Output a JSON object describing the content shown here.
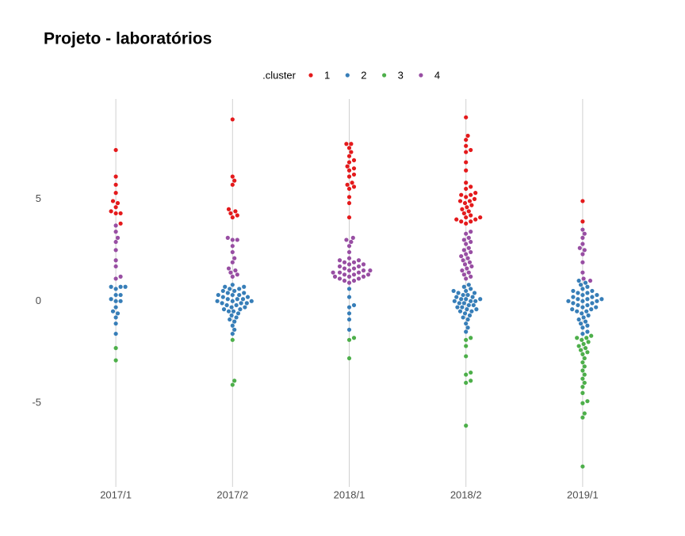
{
  "chart_data": {
    "type": "beeswarm",
    "title": "Projeto - laboratórios",
    "legend_title": ".cluster",
    "categories": [
      "2017/1",
      "2017/2",
      "2018/1",
      "2018/2",
      "2019/1"
    ],
    "ylim": [
      -9.1,
      9.9
    ],
    "yticks": [
      -5,
      0,
      5
    ],
    "grid": true,
    "series": [
      {
        "name": "1",
        "color": "#e41a1c",
        "x": [
          "2017/1",
          "2017/1",
          "2017/1",
          "2017/1",
          "2017/1",
          "2017/1",
          "2017/1",
          "2017/1",
          "2017/1",
          "2017/1",
          "2017/1",
          "2017/2",
          "2017/2",
          "2017/2",
          "2017/2",
          "2017/2",
          "2017/2",
          "2017/2",
          "2017/2",
          "2017/2",
          "2018/1",
          "2018/1",
          "2018/1",
          "2018/1",
          "2018/1",
          "2018/1",
          "2018/1",
          "2018/1",
          "2018/1",
          "2018/1",
          "2018/1",
          "2018/1",
          "2018/1",
          "2018/1",
          "2018/1",
          "2018/1",
          "2018/1",
          "2018/1",
          "2018/1",
          "2018/2",
          "2018/2",
          "2018/2",
          "2018/2",
          "2018/2",
          "2018/2",
          "2018/2",
          "2018/2",
          "2018/2",
          "2018/2",
          "2018/2",
          "2018/2",
          "2018/2",
          "2018/2",
          "2018/2",
          "2018/2",
          "2018/2",
          "2018/2",
          "2018/2",
          "2018/2",
          "2018/2",
          "2018/2",
          "2018/2",
          "2018/2",
          "2018/2",
          "2018/2",
          "2018/2",
          "2018/2",
          "2018/2",
          "2018/2",
          "2018/2",
          "2018/2",
          "2019/1",
          "2019/1"
        ],
        "values": [
          7.4,
          6.1,
          5.7,
          5.3,
          4.9,
          4.8,
          4.6,
          4.4,
          4.3,
          4.3,
          3.8,
          8.9,
          6.1,
          5.9,
          5.7,
          4.5,
          4.4,
          4.3,
          4.2,
          4.1,
          7.7,
          7.7,
          7.5,
          7.3,
          7.1,
          6.9,
          6.8,
          6.6,
          6.5,
          6.4,
          6.2,
          6.1,
          5.8,
          5.7,
          5.6,
          5.5,
          5.1,
          4.8,
          4.1,
          9.0,
          8.1,
          7.9,
          7.6,
          7.4,
          7.3,
          6.8,
          6.4,
          5.8,
          5.6,
          5.5,
          5.3,
          5.2,
          5.2,
          5.1,
          5.0,
          4.9,
          4.9,
          4.8,
          4.7,
          4.6,
          4.5,
          4.4,
          4.3,
          4.2,
          4.1,
          4.1,
          4.0,
          4.0,
          3.9,
          3.9,
          3.8,
          4.9,
          3.9
        ]
      },
      {
        "name": "2",
        "color": "#377eb8",
        "x": [
          "2017/1",
          "2017/1",
          "2017/1",
          "2017/1",
          "2017/1",
          "2017/1",
          "2017/1",
          "2017/1",
          "2017/1",
          "2017/1",
          "2017/1",
          "2017/1",
          "2017/1",
          "2017/1",
          "2017/1",
          "2017/2",
          "2017/2",
          "2017/2",
          "2017/2",
          "2017/2",
          "2017/2",
          "2017/2",
          "2017/2",
          "2017/2",
          "2017/2",
          "2017/2",
          "2017/2",
          "2017/2",
          "2017/2",
          "2017/2",
          "2017/2",
          "2017/2",
          "2017/2",
          "2017/2",
          "2017/2",
          "2017/2",
          "2017/2",
          "2017/2",
          "2017/2",
          "2017/2",
          "2017/2",
          "2017/2",
          "2017/2",
          "2017/2",
          "2017/2",
          "2017/2",
          "2017/2",
          "2017/2",
          "2017/2",
          "2017/2",
          "2017/2",
          "2017/2",
          "2017/2",
          "2017/2",
          "2018/1",
          "2018/1",
          "2018/1",
          "2018/1",
          "2018/1",
          "2018/1",
          "2018/1",
          "2018/2",
          "2018/2",
          "2018/2",
          "2018/2",
          "2018/2",
          "2018/2",
          "2018/2",
          "2018/2",
          "2018/2",
          "2018/2",
          "2018/2",
          "2018/2",
          "2018/2",
          "2018/2",
          "2018/2",
          "2018/2",
          "2018/2",
          "2018/2",
          "2018/2",
          "2018/2",
          "2018/2",
          "2018/2",
          "2018/2",
          "2018/2",
          "2018/2",
          "2018/2",
          "2018/2",
          "2018/2",
          "2018/2",
          "2018/2",
          "2018/2",
          "2018/2",
          "2018/2",
          "2018/2",
          "2019/1",
          "2019/1",
          "2019/1",
          "2019/1",
          "2019/1",
          "2019/1",
          "2019/1",
          "2019/1",
          "2019/1",
          "2019/1",
          "2019/1",
          "2019/1",
          "2019/1",
          "2019/1",
          "2019/1",
          "2019/1",
          "2019/1",
          "2019/1",
          "2019/1",
          "2019/1",
          "2019/1",
          "2019/1",
          "2019/1",
          "2019/1",
          "2019/1",
          "2019/1",
          "2019/1",
          "2019/1",
          "2019/1",
          "2019/1",
          "2019/1",
          "2019/1",
          "2019/1",
          "2019/1",
          "2019/1",
          "2019/1",
          "2019/1",
          "2019/1",
          "2019/1"
        ],
        "values": [
          0.7,
          0.7,
          0.7,
          0.6,
          0.3,
          0.3,
          0.1,
          0.0,
          0.0,
          -0.3,
          -0.5,
          -0.6,
          -0.8,
          -1.1,
          -1.6,
          0.8,
          0.7,
          0.7,
          0.6,
          0.6,
          0.5,
          0.5,
          0.4,
          0.4,
          0.3,
          0.3,
          0.3,
          0.2,
          0.2,
          0.1,
          0.1,
          0.1,
          0.0,
          0.0,
          0.0,
          -0.1,
          -0.1,
          -0.1,
          -0.2,
          -0.2,
          -0.3,
          -0.3,
          -0.4,
          -0.4,
          -0.5,
          -0.5,
          -0.6,
          -0.7,
          -0.8,
          -0.9,
          -1.0,
          -1.2,
          -1.4,
          -1.6,
          0.6,
          0.2,
          -0.2,
          -0.3,
          -0.6,
          -0.9,
          -1.4,
          0.8,
          0.7,
          0.6,
          0.5,
          0.5,
          0.4,
          0.4,
          0.3,
          0.3,
          0.2,
          0.2,
          0.1,
          0.1,
          0.1,
          0.0,
          0.0,
          0.0,
          -0.1,
          -0.1,
          -0.2,
          -0.2,
          -0.3,
          -0.3,
          -0.4,
          -0.4,
          -0.5,
          -0.5,
          -0.6,
          -0.7,
          -0.8,
          -0.9,
          -1.1,
          -1.3,
          -1.5,
          1.0,
          0.9,
          0.8,
          0.7,
          0.6,
          0.5,
          0.5,
          0.4,
          0.4,
          0.3,
          0.3,
          0.2,
          0.2,
          0.1,
          0.1,
          0.1,
          0.0,
          0.0,
          0.0,
          -0.1,
          -0.1,
          -0.2,
          -0.2,
          -0.3,
          -0.3,
          -0.4,
          -0.4,
          -0.5,
          -0.5,
          -0.6,
          -0.7,
          -0.8,
          -0.9,
          -1.0,
          -1.1,
          -1.2,
          -1.3,
          -1.5,
          -1.6
        ]
      },
      {
        "name": "3",
        "color": "#4daf4a",
        "x": [
          "2017/1",
          "2017/1",
          "2017/2",
          "2017/2",
          "2017/2",
          "2018/1",
          "2018/1",
          "2018/1",
          "2018/2",
          "2018/2",
          "2018/2",
          "2018/2",
          "2018/2",
          "2018/2",
          "2018/2",
          "2018/2",
          "2018/2",
          "2019/1",
          "2019/1",
          "2019/1",
          "2019/1",
          "2019/1",
          "2019/1",
          "2019/1",
          "2019/1",
          "2019/1",
          "2019/1",
          "2019/1",
          "2019/1",
          "2019/1",
          "2019/1",
          "2019/1",
          "2019/1",
          "2019/1",
          "2019/1",
          "2019/1",
          "2019/1",
          "2019/1",
          "2019/1",
          "2019/1",
          "2019/1",
          "2019/1"
        ],
        "values": [
          -2.3,
          -2.9,
          -1.9,
          -3.9,
          -4.1,
          -1.8,
          -1.9,
          -2.8,
          -1.8,
          -1.9,
          -2.2,
          -2.7,
          -3.5,
          -3.6,
          -3.9,
          -4.0,
          -6.1,
          -1.7,
          -1.8,
          -1.8,
          -1.9,
          -2.0,
          -2.1,
          -2.2,
          -2.3,
          -2.4,
          -2.5,
          -2.6,
          -2.8,
          -3.0,
          -3.2,
          -3.4,
          -3.6,
          -3.8,
          -4.0,
          -4.2,
          -4.5,
          -4.9,
          -5.0,
          -5.5,
          -5.7,
          -8.1
        ]
      },
      {
        "name": "4",
        "color": "#984ea3",
        "x": [
          "2017/1",
          "2017/1",
          "2017/1",
          "2017/1",
          "2017/1",
          "2017/1",
          "2017/1",
          "2017/1",
          "2017/1",
          "2017/2",
          "2017/2",
          "2017/2",
          "2017/2",
          "2017/2",
          "2017/2",
          "2017/2",
          "2017/2",
          "2017/2",
          "2017/2",
          "2017/2",
          "2017/2",
          "2018/1",
          "2018/1",
          "2018/1",
          "2018/1",
          "2018/1",
          "2018/1",
          "2018/1",
          "2018/1",
          "2018/1",
          "2018/1",
          "2018/1",
          "2018/1",
          "2018/1",
          "2018/1",
          "2018/1",
          "2018/1",
          "2018/1",
          "2018/1",
          "2018/1",
          "2018/1",
          "2018/1",
          "2018/1",
          "2018/1",
          "2018/1",
          "2018/1",
          "2018/1",
          "2018/1",
          "2018/1",
          "2018/1",
          "2018/1",
          "2018/1",
          "2018/1",
          "2018/1",
          "2018/2",
          "2018/2",
          "2018/2",
          "2018/2",
          "2018/2",
          "2018/2",
          "2018/2",
          "2018/2",
          "2018/2",
          "2018/2",
          "2018/2",
          "2018/2",
          "2018/2",
          "2018/2",
          "2018/2",
          "2018/2",
          "2018/2",
          "2018/2",
          "2018/2",
          "2018/2",
          "2018/2",
          "2018/2",
          "2019/1",
          "2019/1",
          "2019/1",
          "2019/1",
          "2019/1",
          "2019/1",
          "2019/1",
          "2019/1",
          "2019/1",
          "2019/1",
          "2019/1"
        ],
        "values": [
          3.7,
          3.4,
          3.1,
          2.9,
          2.5,
          2.0,
          1.7,
          1.2,
          1.1,
          3.1,
          3.0,
          3.0,
          2.7,
          2.4,
          2.1,
          1.9,
          1.6,
          1.5,
          1.4,
          1.3,
          1.2,
          3.1,
          3.0,
          2.9,
          2.7,
          2.4,
          2.1,
          2.0,
          2.0,
          1.9,
          1.9,
          1.8,
          1.8,
          1.7,
          1.7,
          1.6,
          1.6,
          1.5,
          1.5,
          1.5,
          1.4,
          1.4,
          1.4,
          1.3,
          1.3,
          1.3,
          1.2,
          1.2,
          1.2,
          1.1,
          1.1,
          1.0,
          1.0,
          0.9,
          3.4,
          3.3,
          3.1,
          3.0,
          2.9,
          2.8,
          2.6,
          2.5,
          2.4,
          2.3,
          2.2,
          2.1,
          2.0,
          1.9,
          1.8,
          1.7,
          1.6,
          1.5,
          1.4,
          1.3,
          1.2,
          1.1,
          3.5,
          3.3,
          3.1,
          2.8,
          2.6,
          2.5,
          2.3,
          1.9,
          1.4,
          1.1,
          1.0
        ]
      }
    ]
  }
}
